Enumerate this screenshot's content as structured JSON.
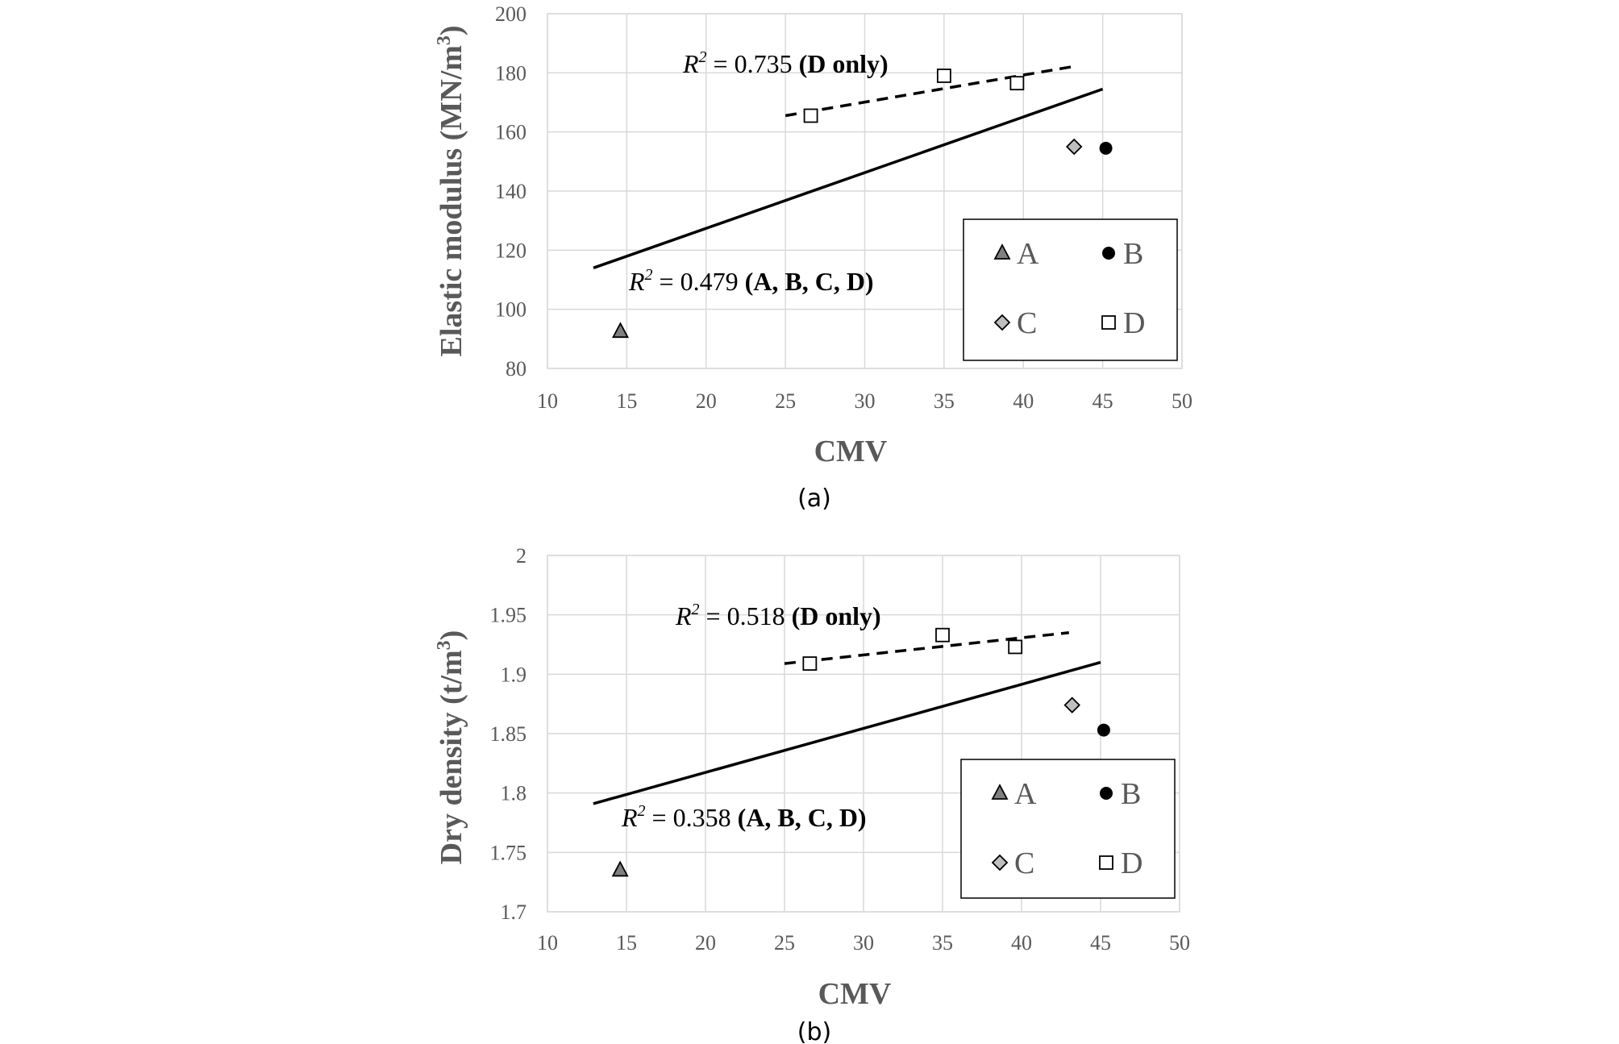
{
  "chart_data": [
    {
      "type": "scatter",
      "panel_label": "(a)",
      "xlabel": "CMV",
      "ylabel_main": "Elastic modulus (MN/m",
      "ylabel_sup": "3",
      "ylabel_close": ")",
      "xlim": [
        10,
        50
      ],
      "ylim": [
        80,
        200
      ],
      "x_ticks": [
        "10",
        "15",
        "20",
        "25",
        "30",
        "35",
        "40",
        "45",
        "50"
      ],
      "y_ticks": [
        "80",
        "100",
        "120",
        "140",
        "160",
        "180",
        "200"
      ],
      "grid": true,
      "legend_position": "bottom-right",
      "series": [
        {
          "name": "A",
          "marker": "triangle",
          "color": "#7f7f7f",
          "points": [
            [
              14.6,
              92.5
            ]
          ]
        },
        {
          "name": "B",
          "marker": "circle",
          "color": "#000000",
          "points": [
            [
              45.2,
              154.5
            ]
          ]
        },
        {
          "name": "C",
          "marker": "diamond",
          "color": "#bfbfbf",
          "points": [
            [
              43.2,
              155
            ]
          ]
        },
        {
          "name": "D",
          "marker": "square",
          "color": "#ffffff",
          "points": [
            [
              26.6,
              165.5
            ],
            [
              35.0,
              179
            ],
            [
              39.6,
              176.5
            ]
          ]
        }
      ],
      "trendlines": [
        {
          "style": "solid",
          "from": [
            12.9,
            114
          ],
          "to": [
            45.0,
            174.5
          ]
        },
        {
          "style": "dashed",
          "from": [
            25.0,
            165.5
          ],
          "to": [
            43.0,
            182
          ]
        }
      ],
      "annotations": [
        {
          "r_label": "R",
          "sup": "2",
          "value": " = 0.735 ",
          "group": "(D only)"
        },
        {
          "r_label": "R",
          "sup": "2",
          "value": " = 0.479 ",
          "group": "(A, B, C, D)"
        }
      ]
    },
    {
      "type": "scatter",
      "panel_label": "(b)",
      "xlabel": "CMV",
      "ylabel_main": "Dry density (t/m",
      "ylabel_sup": "3",
      "ylabel_close": ")",
      "xlim": [
        10,
        50
      ],
      "ylim": [
        1.7,
        2.0
      ],
      "x_ticks": [
        "10",
        "15",
        "20",
        "25",
        "30",
        "35",
        "40",
        "45",
        "50"
      ],
      "y_ticks": [
        "1.7",
        "1.75",
        "1.8",
        "1.85",
        "1.9",
        "1.95",
        "2"
      ],
      "grid": true,
      "legend_position": "bottom-right",
      "series": [
        {
          "name": "A",
          "marker": "triangle",
          "color": "#7f7f7f",
          "points": [
            [
              14.6,
              1.735
            ]
          ]
        },
        {
          "name": "B",
          "marker": "circle",
          "color": "#000000",
          "points": [
            [
              45.2,
              1.853
            ]
          ]
        },
        {
          "name": "C",
          "marker": "diamond",
          "color": "#bfbfbf",
          "points": [
            [
              43.2,
              1.874
            ]
          ]
        },
        {
          "name": "D",
          "marker": "square",
          "color": "#ffffff",
          "points": [
            [
              26.6,
              1.909
            ],
            [
              35.0,
              1.933
            ],
            [
              39.6,
              1.923
            ]
          ]
        }
      ],
      "trendlines": [
        {
          "style": "solid",
          "from": [
            12.9,
            1.791
          ],
          "to": [
            45.0,
            1.91
          ]
        },
        {
          "style": "dashed",
          "from": [
            25.0,
            1.909
          ],
          "to": [
            43.0,
            1.935
          ]
        }
      ],
      "annotations": [
        {
          "r_label": "R",
          "sup": "2",
          "value": " = 0.518 ",
          "group": "(D only)"
        },
        {
          "r_label": "R",
          "sup": "2",
          "value": " = 0.358 ",
          "group": "(A, B, C, D)"
        }
      ]
    }
  ]
}
